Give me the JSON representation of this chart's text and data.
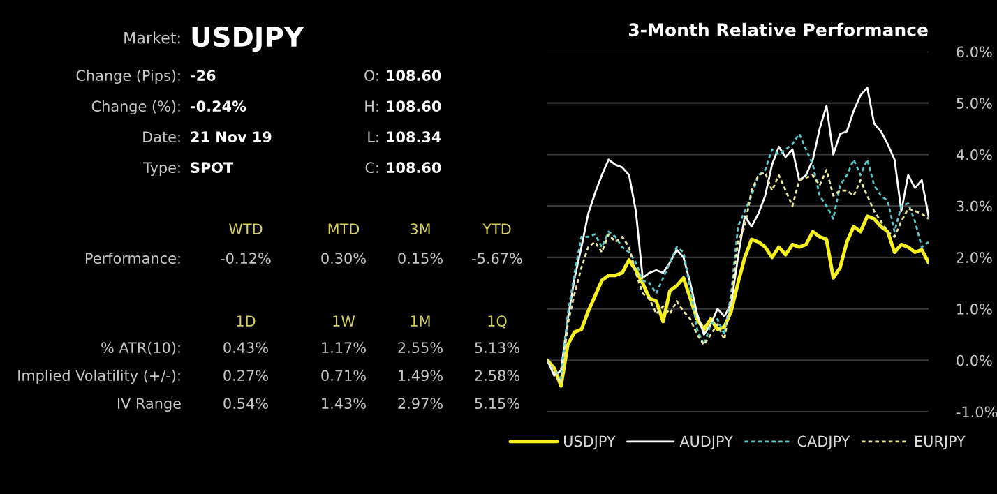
{
  "chart_data": [
    {
      "type": "other",
      "annotations": [
        "Market:",
        "USDJPY",
        "Change (Pips):",
        "-26",
        "O:",
        "108.60",
        "Change (%):",
        "-0.24%",
        "H:",
        "108.60",
        "Date:",
        "21 Nov 19",
        "L:",
        "108.34",
        "Type:",
        "SPOT",
        "C:",
        "108.60",
        "WTD",
        "MTD",
        "3M",
        "YTD",
        "Performance:",
        "-0.12%",
        "0.30%",
        "0.15%",
        "-5.67%",
        "1D",
        "1W",
        "1M",
        "1Q",
        "% ATR(10):",
        "0.43%",
        "1.17%",
        "2.55%",
        "5.13%",
        "Implied Volatility (+/-):",
        "0.27%",
        "0.71%",
        "1.49%",
        "2.58%",
        "IV Range",
        "0.54%",
        "1.43%",
        "2.97%",
        "5.15%"
      ]
    },
    {
      "type": "line",
      "title": "3-Month Relative Performance",
      "categories": [
        null,
        null,
        null,
        null,
        null,
        null,
        null,
        null,
        null,
        null,
        null,
        null,
        null,
        null,
        null,
        null,
        null,
        null,
        null,
        null,
        null,
        null,
        null,
        null,
        null,
        null,
        null,
        null,
        null,
        null,
        null,
        null,
        null,
        null,
        null,
        null,
        null,
        null,
        null,
        null,
        null,
        null,
        null,
        null,
        null,
        null,
        null,
        null,
        null,
        null,
        null,
        null,
        null,
        null,
        null,
        null,
        null
      ],
      "series": [
        {
          "name": "USDJPY",
          "color": "#f5f01e",
          "line_style": "solid",
          "values": [
            0.0,
            -0.15,
            -0.5,
            0.3,
            0.55,
            0.6,
            0.95,
            1.25,
            1.55,
            1.65,
            1.65,
            1.7,
            1.95,
            1.75,
            1.5,
            1.2,
            1.15,
            0.75,
            1.35,
            1.45,
            1.6,
            1.2,
            0.8,
            0.6,
            0.8,
            0.6,
            0.65,
            0.95,
            1.5,
            2.0,
            2.35,
            2.3,
            2.2,
            2.0,
            2.2,
            2.05,
            2.25,
            2.2,
            2.25,
            2.5,
            2.4,
            2.35,
            1.6,
            1.8,
            2.3,
            2.6,
            2.5,
            2.8,
            2.75,
            2.6,
            2.5,
            2.1,
            2.25,
            2.2,
            2.1,
            2.15,
            1.9
          ]
        },
        {
          "name": "AUDJPY",
          "color": "#ffffff",
          "line_style": "solid",
          "values": [
            0.0,
            -0.3,
            -0.2,
            0.8,
            1.6,
            2.2,
            2.85,
            3.25,
            3.6,
            3.9,
            3.8,
            3.75,
            3.6,
            2.9,
            1.6,
            1.7,
            1.75,
            1.7,
            1.9,
            2.15,
            2.0,
            1.5,
            0.9,
            0.5,
            0.7,
            1.0,
            0.85,
            1.1,
            2.0,
            2.8,
            2.6,
            2.85,
            3.2,
            3.8,
            4.15,
            3.95,
            4.1,
            3.5,
            3.6,
            3.9,
            4.5,
            4.95,
            4.0,
            4.4,
            4.45,
            4.85,
            5.15,
            5.3,
            4.6,
            4.45,
            4.2,
            3.9,
            2.9,
            3.6,
            3.35,
            3.5,
            2.8
          ]
        },
        {
          "name": "CADJPY",
          "color": "#5bc8c8",
          "line_style": "dashed",
          "values": [
            0.0,
            -0.2,
            -0.35,
            0.9,
            1.7,
            2.4,
            2.4,
            2.45,
            2.2,
            2.5,
            2.4,
            2.2,
            2.1,
            1.9,
            1.55,
            1.5,
            1.3,
            1.6,
            1.9,
            2.2,
            2.1,
            1.4,
            0.6,
            0.3,
            0.7,
            0.8,
            0.5,
            1.3,
            2.6,
            2.9,
            3.2,
            3.6,
            3.7,
            4.1,
            4.0,
            4.1,
            4.2,
            4.4,
            4.1,
            3.8,
            3.2,
            3.0,
            2.75,
            3.4,
            3.6,
            3.9,
            3.6,
            3.9,
            3.4,
            3.2,
            3.1,
            2.5,
            3.0,
            3.05,
            2.7,
            2.2,
            2.3
          ]
        },
        {
          "name": "EURJPY",
          "color": "#e8e6a0",
          "line_style": "dashed",
          "values": [
            0.0,
            -0.2,
            -0.45,
            0.7,
            1.3,
            1.8,
            2.2,
            2.3,
            2.1,
            2.45,
            2.3,
            2.4,
            2.2,
            1.7,
            1.3,
            1.2,
            0.9,
            1.05,
            0.9,
            1.15,
            0.95,
            0.8,
            0.5,
            0.3,
            0.5,
            0.7,
            0.4,
            1.2,
            2.3,
            2.6,
            3.3,
            3.6,
            3.65,
            3.3,
            3.6,
            3.3,
            3.0,
            3.5,
            3.55,
            3.6,
            3.4,
            3.7,
            3.2,
            3.3,
            3.3,
            3.2,
            3.5,
            3.2,
            2.9,
            2.7,
            2.5,
            2.4,
            2.7,
            2.95,
            2.9,
            2.85,
            2.75
          ]
        }
      ],
      "ylim": [
        -1.0,
        6.0
      ],
      "yticks": [
        {
          "value": -1.0,
          "label": "-1.0%"
        },
        {
          "value": 0.0,
          "label": "0.0%"
        },
        {
          "value": 1.0,
          "label": "1.0%"
        },
        {
          "value": 2.0,
          "label": "2.0%"
        },
        {
          "value": 3.0,
          "label": "3.0%"
        },
        {
          "value": 4.0,
          "label": "4.0%"
        },
        {
          "value": 5.0,
          "label": "5.0%"
        },
        {
          "value": 6.0,
          "label": "6.0%"
        }
      ],
      "grid": "y",
      "legend": "bottom",
      "tick_labels": "y"
    }
  ]
}
